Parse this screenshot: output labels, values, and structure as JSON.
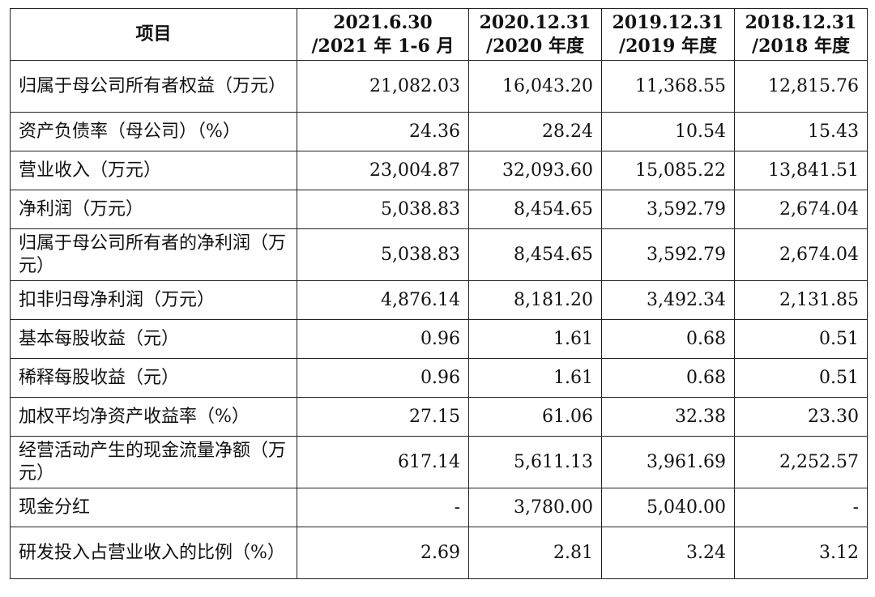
{
  "table": {
    "header": {
      "item": "项目",
      "periods": [
        {
          "line1": "2021.6.30",
          "line2": "/2021 年 1-6 月"
        },
        {
          "line1": "2020.12.31",
          "line2": "/2020 年度"
        },
        {
          "line1": "2019.12.31",
          "line2": "/2019 年度"
        },
        {
          "line1": "2018.12.31",
          "line2": "/2018 年度"
        }
      ]
    },
    "rows": [
      {
        "label": "归属于母公司所有者权益（万元）",
        "values": [
          "21,082.03",
          "16,043.20",
          "11,368.55",
          "12,815.76"
        ]
      },
      {
        "label": "资产负债率（母公司）（%）",
        "values": [
          "24.36",
          "28.24",
          "10.54",
          "15.43"
        ]
      },
      {
        "label": "营业收入（万元）",
        "values": [
          "23,004.87",
          "32,093.60",
          "15,085.22",
          "13,841.51"
        ]
      },
      {
        "label": "净利润（万元）",
        "values": [
          "5,038.83",
          "8,454.65",
          "3,592.79",
          "2,674.04"
        ]
      },
      {
        "label": "归属于母公司所有者的净利润（万元）",
        "values": [
          "5,038.83",
          "8,454.65",
          "3,592.79",
          "2,674.04"
        ]
      },
      {
        "label": "扣非归母净利润（万元）",
        "values": [
          "4,876.14",
          "8,181.20",
          "3,492.34",
          "2,131.85"
        ]
      },
      {
        "label": "基本每股收益（元）",
        "values": [
          "0.96",
          "1.61",
          "0.68",
          "0.51"
        ]
      },
      {
        "label": "稀释每股收益（元）",
        "values": [
          "0.96",
          "1.61",
          "0.68",
          "0.51"
        ]
      },
      {
        "label": "加权平均净资产收益率（%）",
        "values": [
          "27.15",
          "61.06",
          "32.38",
          "23.30"
        ]
      },
      {
        "label": "经营活动产生的现金流量净额（万元）",
        "values": [
          "617.14",
          "5,611.13",
          "3,961.69",
          "2,252.57"
        ]
      },
      {
        "label": "现金分红",
        "values": [
          "-",
          "3,780.00",
          "5,040.00",
          "-"
        ]
      },
      {
        "label": "研发投入占营业收入的比例（%）",
        "values": [
          "2.69",
          "2.81",
          "3.24",
          "3.12"
        ]
      }
    ]
  }
}
